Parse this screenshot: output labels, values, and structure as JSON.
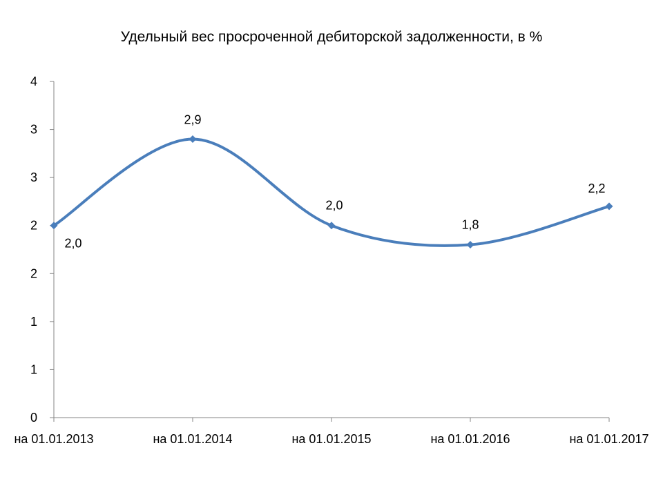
{
  "chart_data": {
    "type": "line",
    "title": "Удельный вес просроченной дебиторской задолженности, в %",
    "categories": [
      "на 01.01.2013",
      "на 01.01.2014",
      "на 01.01.2015",
      "на 01.01.2016",
      "на 01.01.2017"
    ],
    "series": [
      {
        "values": [
          2.0,
          2.9,
          2.0,
          1.8,
          2.2
        ],
        "data_labels": [
          "2,0",
          "2,9",
          "2,0",
          "1,8",
          "2,2"
        ],
        "color": "#4a7ebb",
        "smooth": true,
        "marker": "diamond"
      }
    ],
    "ylim": [
      0,
      3.5
    ],
    "y_tick_labels": [
      "0",
      "1",
      "1",
      "2",
      "2",
      "3",
      "3",
      "4"
    ],
    "grid": false,
    "legend": "none",
    "xlabel": "",
    "ylabel": ""
  }
}
